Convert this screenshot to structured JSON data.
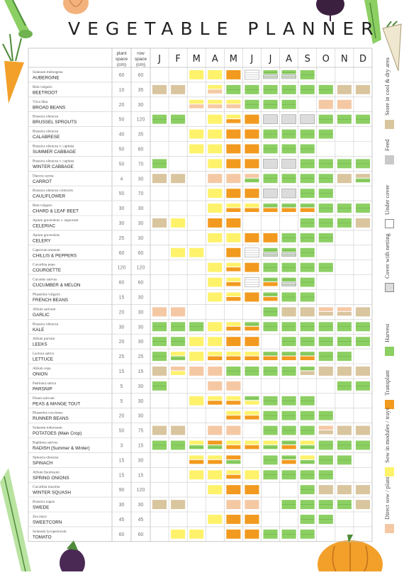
{
  "title": "VEGETABLE PLANNER",
  "header": {
    "plant_space": "plant space (cm)",
    "row_space": "row space (cm)",
    "months": [
      "J",
      "F",
      "M",
      "A",
      "M",
      "J",
      "J",
      "A",
      "S",
      "O",
      "N",
      "D"
    ]
  },
  "colors": {
    "direct_sow": "#f5c8a4",
    "sow_modules": "#fef26b",
    "transplant": "#f29a1f",
    "harvest": "#8ccf63",
    "cover_netting": "#dcdcdc",
    "under_cover": "#ffffff",
    "feed": "#c9c9c9",
    "store": "#d9c59e"
  },
  "legend": [
    {
      "key": "direct_sow",
      "label": "Direct sow / plant"
    },
    {
      "key": "sow_modules",
      "label": "Sow in modules / trays"
    },
    {
      "key": "transplant",
      "label": "Transplant"
    },
    {
      "key": "harvest",
      "label": "Harvest"
    },
    {
      "key": "cover_netting",
      "label": "Cover with netting"
    },
    {
      "key": "under_cover",
      "label": "Under cover"
    },
    {
      "key": "feed",
      "label": "Feed"
    },
    {
      "key": "store",
      "label": "Store in cool & dry area"
    }
  ],
  "rows": [
    {
      "latin": "Solanum melongena",
      "name": "AUBERGINE",
      "plant": "60",
      "row": "60"
    },
    {
      "latin": "Beta vulgaris",
      "name": "BEETROOT",
      "plant": "10",
      "row": "35"
    },
    {
      "latin": "Vicia faba",
      "name": "BROAD BEANS",
      "plant": "20",
      "row": "30"
    },
    {
      "latin": "Brassica oleracea",
      "name": "BRUSSEL SPROUTS",
      "plant": "50",
      "row": "120"
    },
    {
      "latin": "Brassica oleracea",
      "name": "CALABRESE",
      "plant": "40",
      "row": "35"
    },
    {
      "latin": "Brassica oleracea v. capitata",
      "name": "SUMMER CABBAGE",
      "plant": "50",
      "row": "60"
    },
    {
      "latin": "Brassica oleracea v. capitata",
      "name": "WINTER CABBAGE",
      "plant": "50",
      "row": "70"
    },
    {
      "latin": "Daucus carota",
      "name": "CARROT",
      "plant": "4",
      "row": "30"
    },
    {
      "latin": "Brassica oleracea v.botrytis",
      "name": "CAULIFLOWER",
      "plant": "50",
      "row": "70"
    },
    {
      "latin": "Beta vulgaris",
      "name": "CHARD & LEAF BEET",
      "plant": "30",
      "row": "30"
    },
    {
      "latin": "Apium graveolens v. rapaceum",
      "name": "CELERIAC",
      "plant": "30",
      "row": "30"
    },
    {
      "latin": "Apium graveolens",
      "name": "CELERY",
      "plant": "25",
      "row": "30"
    },
    {
      "latin": "Capsicum annuum",
      "name": "CHILLIS & PEPPERS",
      "plant": "60",
      "row": "60"
    },
    {
      "latin": "Cucurbita pepo",
      "name": "COURGETTE",
      "plant": "120",
      "row": "120"
    },
    {
      "latin": "Cucumis sativus",
      "name": "CUCUMBER & MELON",
      "plant": "60",
      "row": "60"
    },
    {
      "latin": "Phaseolus vulgaris",
      "name": "FRENCH BEANS",
      "plant": "15",
      "row": "30"
    },
    {
      "latin": "Allium sativum",
      "name": "GARLIC",
      "plant": "20",
      "row": "30"
    },
    {
      "latin": "Brassica oleracea",
      "name": "KALE",
      "plant": "30",
      "row": "30"
    },
    {
      "latin": "Allium porrum",
      "name": "LEEKS",
      "plant": "20",
      "row": "30"
    },
    {
      "latin": "Lactuca sativa",
      "name": "LETTUCE",
      "plant": "25",
      "row": "25"
    },
    {
      "latin": "Allium cepa",
      "name": "ONION",
      "plant": "15",
      "row": "15"
    },
    {
      "latin": "Pastinaca sativa",
      "name": "PARSNIP",
      "plant": "5",
      "row": "30"
    },
    {
      "latin": "Pisum sativum",
      "name": "PEAS & MANGE TOUT",
      "plant": "5",
      "row": "30"
    },
    {
      "latin": "Phaseolus coccineus",
      "name": "RUNNER BEANS",
      "plant": "20",
      "row": "30"
    },
    {
      "latin": "Solanum tuberosum",
      "name": "POTATOES (Main Crop)",
      "plant": "50",
      "row": "75"
    },
    {
      "latin": "Raphinus sativus",
      "name": "RADISH (Summer & Winter)",
      "plant": "3",
      "row": "15"
    },
    {
      "latin": "Spinacia oleracea",
      "name": "SPINACH",
      "plant": "15",
      "row": "30"
    },
    {
      "latin": "Allium fistulosum",
      "name": "SPRING ONIONS",
      "plant": "15",
      "row": "15"
    },
    {
      "latin": "Cucurbita maxima",
      "name": "WINTER SQUASH",
      "plant": "90",
      "row": "120"
    },
    {
      "latin": "Brassica napus",
      "name": "SWEDE",
      "plant": "30",
      "row": "30"
    },
    {
      "latin": "Zea mays",
      "name": "SWEETCORN",
      "plant": "45",
      "row": "45"
    },
    {
      "latin": "Solanum lycopersicum",
      "name": "TOMATO",
      "plant": "60",
      "row": "60"
    }
  ],
  "schedule": [
    [
      "-",
      "-",
      "Y",
      "Y",
      "T",
      "U",
      "HL",
      "HL",
      "H",
      "-",
      "-",
      "-"
    ],
    [
      "S",
      "S",
      "-",
      "YD",
      "H",
      "H",
      "H",
      "H",
      "H",
      "H",
      "S",
      "S"
    ],
    [
      "-",
      "-",
      "YD",
      "YD",
      "YD",
      "H",
      "H",
      "H",
      "-",
      "D",
      "D",
      "-"
    ],
    [
      "H",
      "H",
      "-",
      "Y",
      "YT",
      "T",
      "N",
      "N",
      "N",
      "H",
      "H",
      "H"
    ],
    [
      "-",
      "-",
      "Y",
      "Y",
      "T",
      "T",
      "H",
      "H",
      "H",
      "H",
      "-",
      "-"
    ],
    [
      "-",
      "-",
      "Y",
      "Y",
      "T",
      "T",
      "H",
      "H",
      "H",
      "-",
      "-",
      "-"
    ],
    [
      "H",
      "-",
      "-",
      "Y",
      "T",
      "T",
      "N",
      "N",
      "H",
      "H",
      "H",
      "H"
    ],
    [
      "S",
      "S",
      "-",
      "D",
      "D",
      "DH",
      "H",
      "H",
      "H",
      "H",
      "S",
      "SH"
    ],
    [
      "-",
      "-",
      "-",
      "Y",
      "T",
      "T",
      "N",
      "N",
      "H",
      "H",
      "-",
      "-"
    ],
    [
      "-",
      "-",
      "-",
      "Y",
      "YT",
      "YT",
      "HT",
      "HT",
      "HT",
      "H",
      "H",
      "H"
    ],
    [
      "S",
      "Y",
      "-",
      "T",
      "T",
      "-",
      "-",
      "-",
      "H",
      "H",
      "H",
      "S"
    ],
    [
      "-",
      "-",
      "-",
      "Y",
      "Y",
      "T",
      "T",
      "H",
      "H",
      "H",
      "-",
      "-"
    ],
    [
      "-",
      "Y",
      "Y",
      "-",
      "T",
      "U",
      "HL",
      "HL",
      "H",
      "-",
      "-",
      "-"
    ],
    [
      "-",
      "-",
      "-",
      "Y",
      "YT",
      "T",
      "H",
      "H",
      "H",
      "H",
      "-",
      "-"
    ],
    [
      "-",
      "-",
      "-",
      "Y",
      "YT",
      "U",
      "HT",
      "HL",
      "H",
      "-",
      "-",
      "-"
    ],
    [
      "-",
      "-",
      "-",
      "Y",
      "YT",
      "T",
      "HT",
      "H",
      "H",
      "-",
      "-",
      "-"
    ],
    [
      "D",
      "D",
      "-",
      "-",
      "-",
      "-",
      "H",
      "S",
      "S",
      "DS",
      "DS",
      "S"
    ],
    [
      "H",
      "H",
      "H",
      "Y",
      "YT",
      "HT",
      "H",
      "H",
      "H",
      "H",
      "H",
      "H"
    ],
    [
      "H",
      "H",
      "Y",
      "Y",
      "T",
      "T",
      "-",
      "H",
      "H",
      "H",
      "H",
      "H"
    ],
    [
      "H",
      "YH",
      "Y",
      "YT",
      "YT",
      "YT",
      "HT",
      "HT",
      "HT",
      "H",
      "H",
      "-"
    ],
    [
      "S",
      "DY",
      "D",
      "D",
      "H",
      "H",
      "H",
      "H",
      "HS",
      "S",
      "S",
      "S"
    ],
    [
      "H",
      "-",
      "-",
      "D",
      "D",
      "-",
      "-",
      "-",
      "-",
      "-",
      "H",
      "H"
    ],
    [
      "-",
      "-",
      "Y",
      "YT",
      "YT",
      "HY",
      "H",
      "H",
      "H",
      "-",
      "-",
      "-"
    ],
    [
      "-",
      "-",
      "-",
      "-",
      "YT",
      "YT",
      "H",
      "H",
      "H",
      "H",
      "-",
      "-"
    ],
    [
      "S",
      "S",
      "-",
      "D",
      "D",
      "-",
      "H",
      "H",
      "H",
      "DS",
      "S",
      "S"
    ],
    [
      "H",
      "H",
      "YH",
      "TH",
      "YT",
      "YT",
      "YH",
      "HT",
      "YH",
      "H",
      "H",
      "H"
    ],
    [
      "-",
      "-",
      "YT",
      "YT",
      "TH",
      "-",
      "H",
      "HT",
      "YH",
      "H",
      "H",
      "-"
    ],
    [
      "-",
      "-",
      "Y",
      "Y",
      "YT",
      "Y",
      "H",
      "H",
      "H",
      "H",
      "-",
      "-"
    ],
    [
      "-",
      "-",
      "-",
      "Y",
      "T",
      "T",
      "-",
      "-",
      "H",
      "S",
      "S",
      "S"
    ],
    [
      "S",
      "S",
      "-",
      "-",
      "D",
      "D",
      "-",
      "H",
      "H",
      "H",
      "H",
      "S"
    ],
    [
      "-",
      "-",
      "-",
      "Y",
      "T",
      "T",
      "-",
      "-",
      "H",
      "H",
      "-",
      "-"
    ],
    [
      "-",
      "Y",
      "Y",
      "-",
      "T",
      "T",
      "H",
      "H",
      "H",
      "-",
      "-",
      "-"
    ]
  ]
}
